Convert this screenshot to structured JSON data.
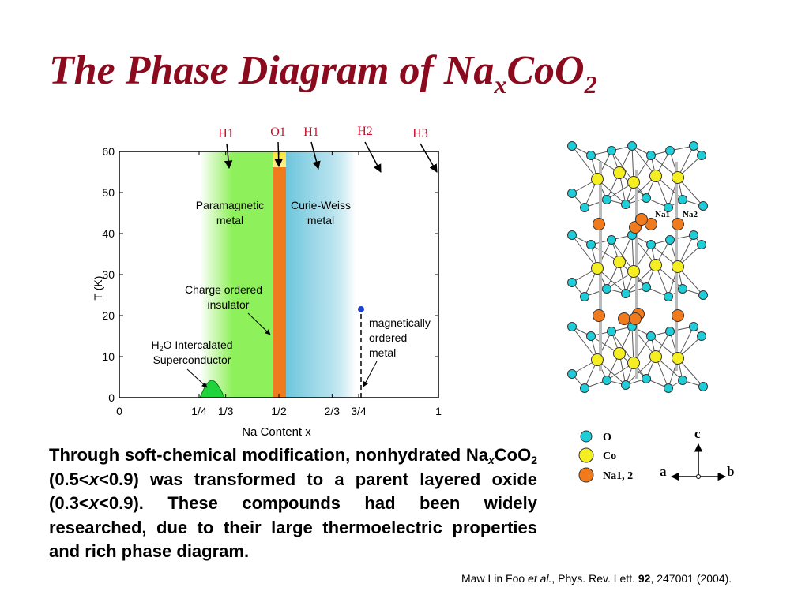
{
  "title": {
    "main": "The Phase Diagram of Na",
    "sub": "x",
    "tail": "CoO",
    "sub2": "2"
  },
  "chart_data": {
    "type": "phase-diagram",
    "xlabel": "Na Content  x",
    "ylabel": "T (K)",
    "xlim": [
      0,
      1
    ],
    "ylim": [
      0,
      60
    ],
    "x_ticks": [
      {
        "value": 0,
        "label": "0"
      },
      {
        "value": 0.25,
        "label": "1/4"
      },
      {
        "value": 0.3333,
        "label": "1/3"
      },
      {
        "value": 0.5,
        "label": "1/2"
      },
      {
        "value": 0.6667,
        "label": "2/3"
      },
      {
        "value": 0.75,
        "label": "3/4"
      },
      {
        "value": 1,
        "label": "1"
      }
    ],
    "y_ticks": [
      0,
      10,
      20,
      30,
      40,
      50,
      60
    ],
    "regions": [
      {
        "name": "Paramagnetic metal",
        "x_range": [
          0.25,
          0.48
        ],
        "color": "#8ef05a"
      },
      {
        "name": "Charge ordered insulator",
        "x_range": [
          0.48,
          0.52
        ],
        "color": "#f07a1e"
      },
      {
        "name": "Curie-Weiss metal",
        "x_range": [
          0.52,
          0.75
        ],
        "color": "#6cc6dc"
      }
    ],
    "dome": {
      "name": "H2O Intercalated Superconductor",
      "x_range": [
        0.26,
        0.34
      ],
      "tmax": 4.5
    },
    "magnetic_transition": {
      "x": 0.75,
      "t": 22
    },
    "phase_labels": [
      {
        "label": "H1",
        "x": 0.35
      },
      {
        "label": "O1",
        "x": 0.5
      },
      {
        "label": "H1",
        "x": 0.6
      },
      {
        "label": "H2",
        "x": 0.78
      },
      {
        "label": "H3",
        "x": 0.98
      }
    ],
    "annotations": {
      "paramagnetic_1": "Paramagnetic",
      "paramagnetic_2": "metal",
      "curie_1": "Curie-Weiss",
      "curie_2": "metal",
      "charge_1": "Charge ordered",
      "charge_2": "insulator",
      "sc_1_a": "H",
      "sc_1_b": "2",
      "sc_1_c": "O Intercalated",
      "sc_2": "Superconductor",
      "mag_1": "magnetically",
      "mag_2": "ordered",
      "mag_3": "metal"
    }
  },
  "crystal": {
    "site_labels": [
      "Na1",
      "Na2"
    ],
    "legend": [
      {
        "label": "O",
        "color": "#1ecdd8"
      },
      {
        "label": "Co",
        "color": "#f4ee22"
      },
      {
        "label": "Na1, 2",
        "color": "#f07a1e"
      }
    ],
    "axes": {
      "c": "c",
      "a": "a",
      "b": "b"
    }
  },
  "body": {
    "p1": "Through soft-chemical modification, nonhydrated Na",
    "sub_x": "x",
    "p2": "CoO",
    "sub_2": "2",
    "p3": " (0.5<",
    "x1": "x",
    "p4": "<0.9) was transformed to a parent layered oxide (0.3<",
    "x2": "x",
    "p5": "<0.9). These compounds had been widely researched, due to their large thermoelectric properties and rich phase diagram."
  },
  "citation": {
    "author": "Maw Lin Foo ",
    "etal": "et al.",
    "journal": ", Phys. Rev. Lett. ",
    "volume": "92",
    "rest": ", 247001 (2004)."
  }
}
